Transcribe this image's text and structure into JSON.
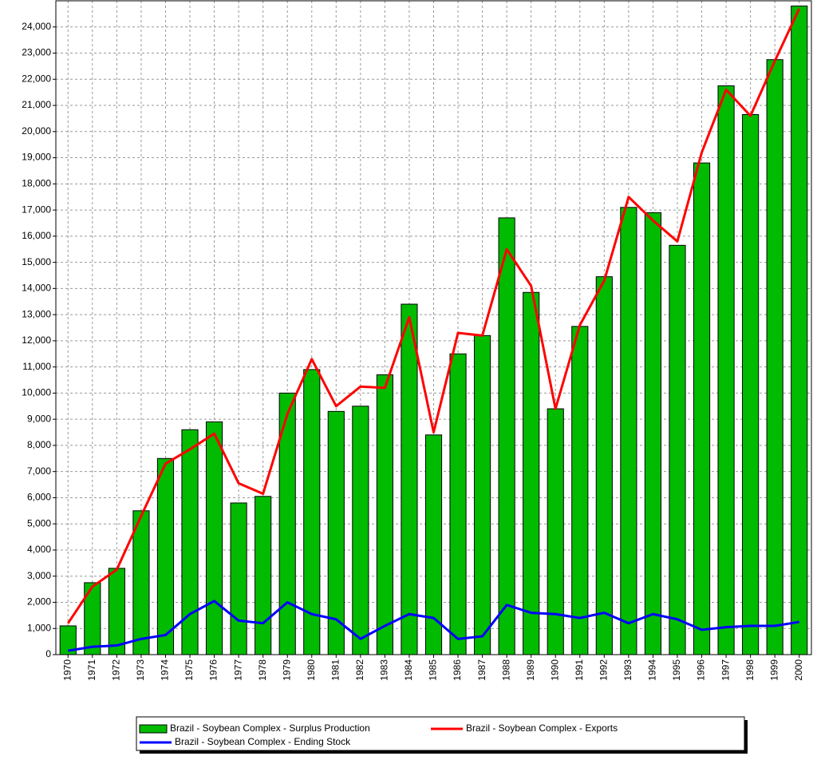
{
  "chart_data": {
    "type": "bar_line",
    "categories": [
      "1970",
      "1971",
      "1972",
      "1973",
      "1974",
      "1975",
      "1976",
      "1977",
      "1978",
      "1979",
      "1980",
      "1981",
      "1982",
      "1983",
      "1984",
      "1985",
      "1986",
      "1987",
      "1988",
      "1989",
      "1990",
      "1991",
      "1992",
      "1993",
      "1994",
      "1995",
      "1996",
      "1997",
      "1998",
      "1999",
      "2000"
    ],
    "series": [
      {
        "name": "Brazil - Soybean Complex - Surplus Production",
        "type": "bar",
        "color": "#00bb00",
        "values": [
          1100,
          2750,
          3300,
          5500,
          7500,
          8600,
          8900,
          5800,
          6050,
          10000,
          10900,
          9300,
          9500,
          10700,
          13400,
          8400,
          11500,
          12200,
          16700,
          13850,
          9400,
          12550,
          14450,
          17100,
          16900,
          15650,
          18800,
          21750,
          20650,
          22750,
          24800
        ]
      },
      {
        "name": "Brazil - Soybean Complex - Exports",
        "type": "line",
        "color": "#ff0000",
        "values": [
          1200,
          2600,
          3250,
          5300,
          7300,
          7850,
          8450,
          6550,
          6150,
          9200,
          11300,
          9500,
          10250,
          10200,
          12900,
          8500,
          12300,
          12200,
          15500,
          14100,
          9400,
          12600,
          14300,
          17500,
          16600,
          15800,
          19200,
          21600,
          20600,
          22700,
          24700
        ]
      },
      {
        "name": "Brazil - Soybean Complex - Ending Stock",
        "type": "line",
        "color": "#0000ff",
        "values": [
          150,
          300,
          350,
          600,
          750,
          1550,
          2050,
          1300,
          1200,
          2000,
          1550,
          1350,
          600,
          1100,
          1550,
          1400,
          600,
          700,
          1900,
          1600,
          1550,
          1400,
          1600,
          1200,
          1550,
          1350,
          950,
          1050,
          1100,
          1100,
          1250
        ]
      }
    ],
    "ylim": [
      0,
      25000
    ],
    "yticks": [
      0,
      {
        "value": 1000,
        "label": "1,000"
      },
      {
        "value": 2000,
        "label": "2,000"
      },
      {
        "value": 3000,
        "label": "3,000"
      },
      {
        "value": 4000,
        "label": "4,000"
      },
      {
        "value": 5000,
        "label": "5,000"
      },
      {
        "value": 6000,
        "label": "6,000"
      },
      {
        "value": 7000,
        "label": "7,000"
      },
      {
        "value": 8000,
        "label": "8,000"
      },
      {
        "value": 9000,
        "label": "9,000"
      },
      {
        "value": 10000,
        "label": "10,000"
      },
      {
        "value": 11000,
        "label": "11,000"
      },
      {
        "value": 12000,
        "label": "12,000"
      },
      {
        "value": 13000,
        "label": "13,000"
      },
      {
        "value": 14000,
        "label": "14,000"
      },
      {
        "value": 15000,
        "label": "15,000"
      },
      {
        "value": 16000,
        "label": "16,000"
      },
      {
        "value": 17000,
        "label": "17,000"
      },
      {
        "value": 18000,
        "label": "18,000"
      },
      {
        "value": 19000,
        "label": "19,000"
      },
      {
        "value": 20000,
        "label": "20,000"
      },
      {
        "value": 21000,
        "label": "21,000"
      },
      {
        "value": 22000,
        "label": "22,000"
      },
      {
        "value": 23000,
        "label": "23,000"
      },
      {
        "value": 24000,
        "label": "24,000"
      }
    ],
    "grid": true
  }
}
